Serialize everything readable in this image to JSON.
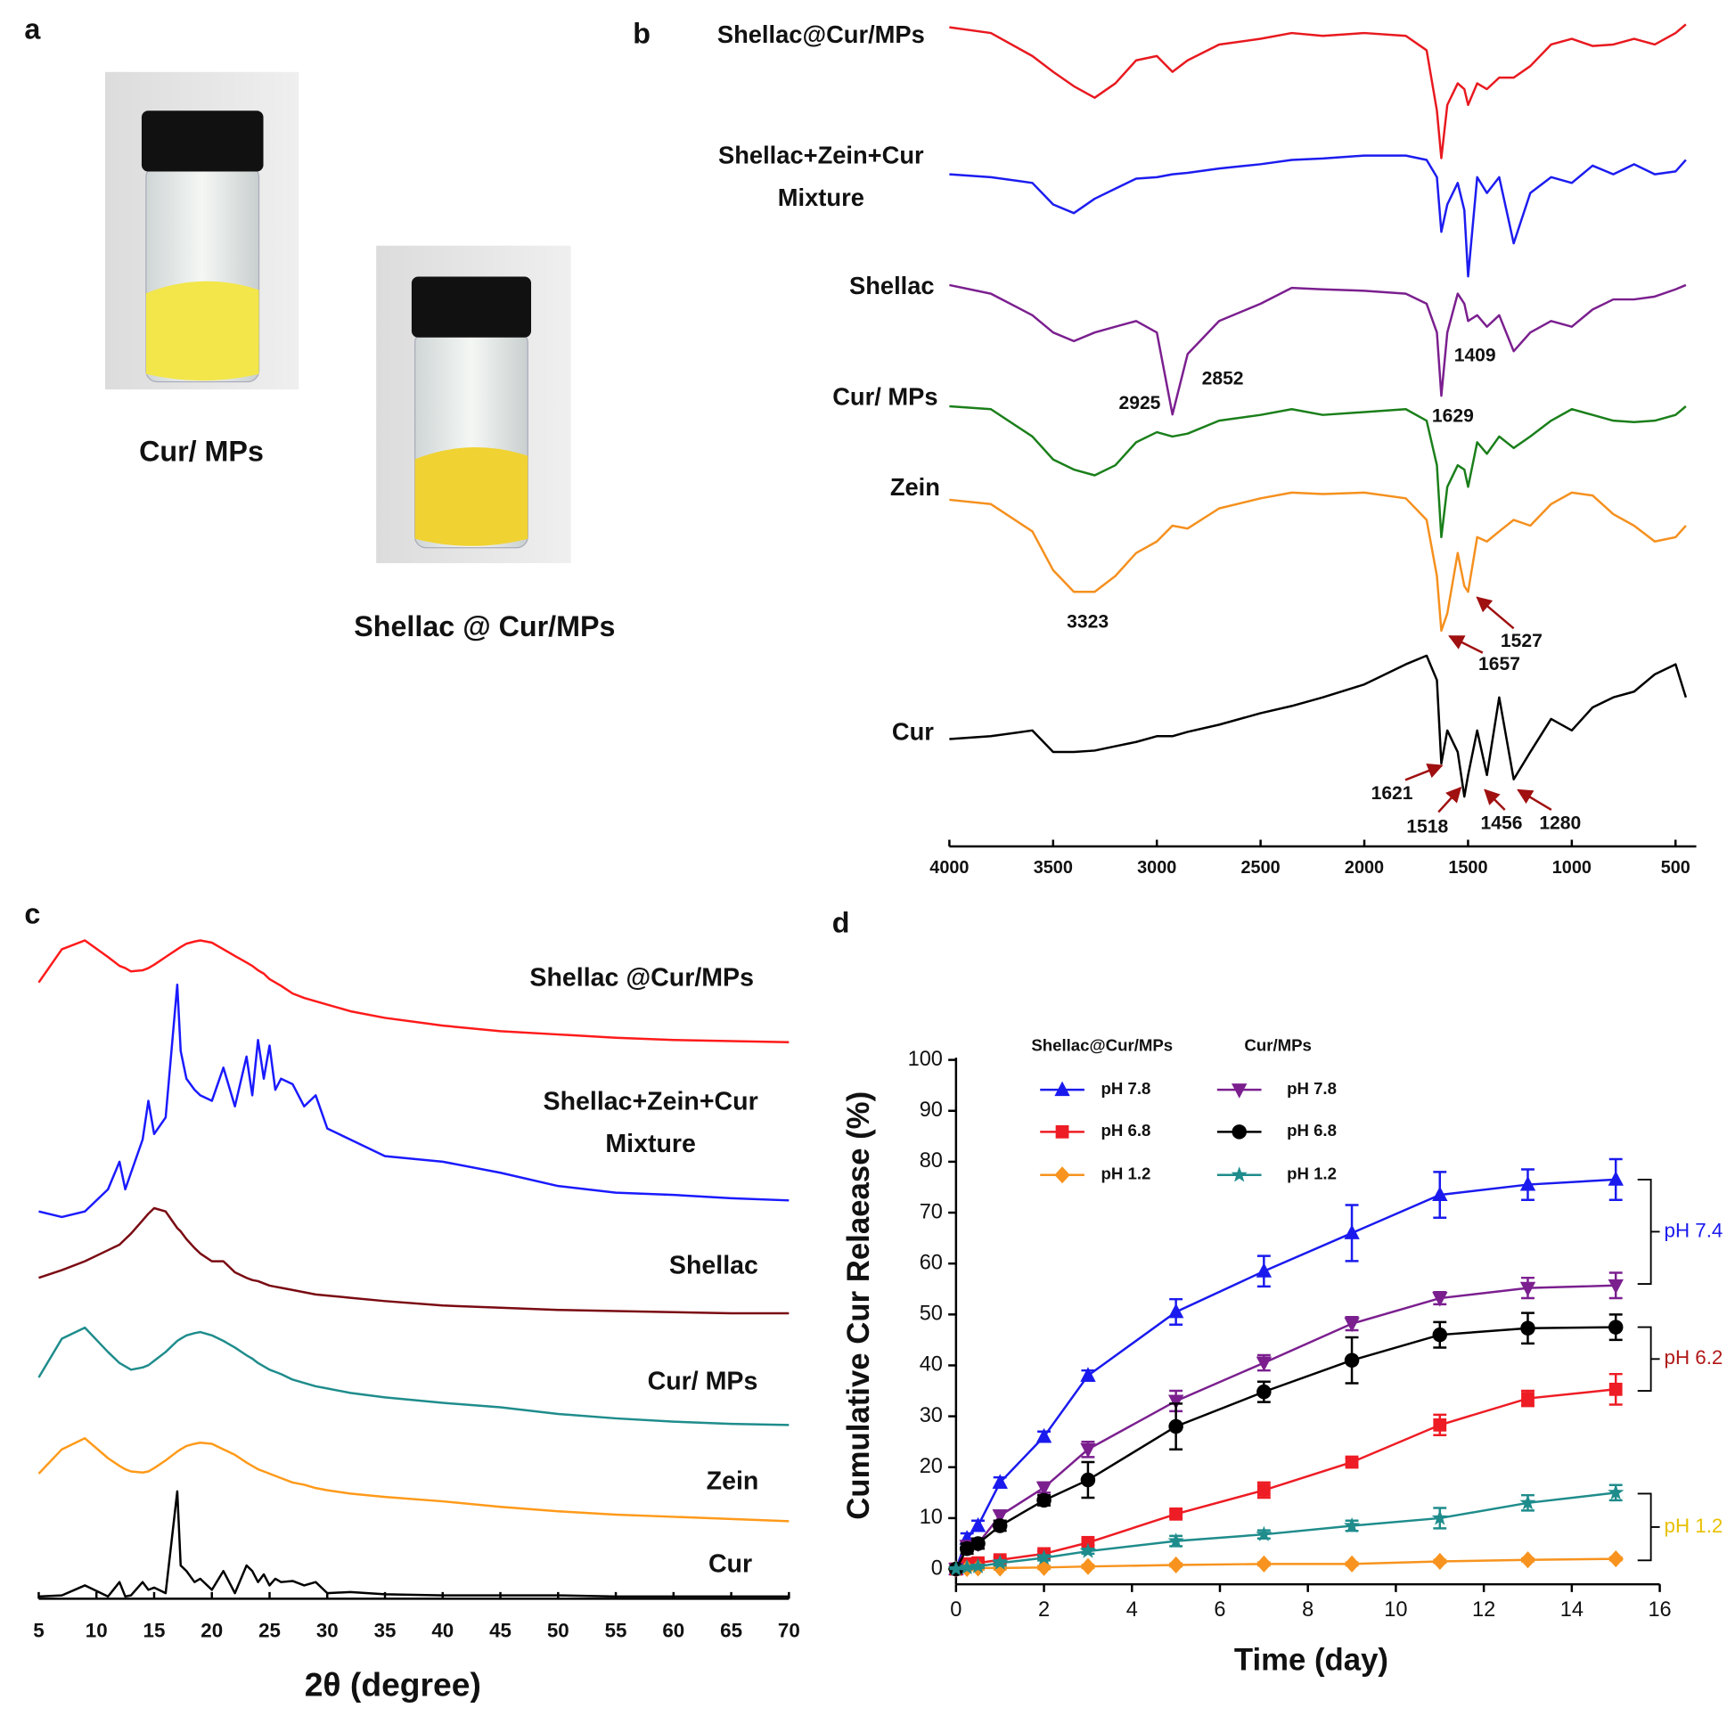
{
  "panel_labels": [
    "a",
    "b",
    "c",
    "d"
  ],
  "photos": {
    "captions": [
      "Cur/ MPs",
      "Shellac @ Cur/MPs"
    ]
  },
  "chart_data": [
    {
      "type": "spectra",
      "x": [
        4000,
        3800,
        3600,
        3500,
        3400,
        3300,
        3200,
        3100,
        3000,
        2925,
        2852,
        2700,
        2500,
        2350,
        2200,
        2000,
        1800,
        1700,
        1650,
        1629,
        1600,
        1550,
        1518,
        1500,
        1456,
        1409,
        1350,
        1280,
        1200,
        1100,
        1000,
        900,
        800,
        700,
        600,
        500,
        450
      ],
      "xlim": [
        4000,
        400
      ],
      "xticks": [
        4000,
        3500,
        3000,
        2500,
        2000,
        1500,
        1000,
        500
      ],
      "series": [
        {
          "label": [
            "Shellac@Cur/MPs"
          ],
          "color": "#e8191f",
          "values": [
            98,
            94,
            78,
            67,
            57,
            49,
            59,
            75,
            78,
            67,
            75,
            86,
            90,
            94,
            92,
            94,
            92,
            82,
            40,
            7,
            44,
            59,
            55,
            44,
            59,
            55,
            63,
            63,
            71,
            86,
            90,
            85,
            86,
            90,
            86,
            94,
            100
          ],
          "annotations": []
        },
        {
          "label": [
            "Shellac+Zein+Cur",
            "Mixture"
          ],
          "color": "#1c1cf0",
          "values": [
            85,
            83,
            79,
            64,
            58,
            68,
            75,
            82,
            83,
            85,
            86,
            89,
            92,
            95,
            96,
            98,
            98,
            95,
            83,
            45,
            64,
            79,
            60,
            14,
            83,
            72,
            83,
            37,
            72,
            83,
            79,
            91,
            85,
            92,
            85,
            87,
            95
          ],
          "annotations": []
        },
        {
          "label": [
            "Shellac"
          ],
          "color": "#7b1f8f",
          "values": [
            98,
            92,
            77,
            65,
            59,
            65,
            69,
            73,
            65,
            8,
            50,
            73,
            85,
            96,
            95,
            94,
            92,
            85,
            65,
            21,
            65,
            92,
            85,
            73,
            77,
            69,
            77,
            52,
            65,
            73,
            69,
            81,
            88,
            88,
            90,
            95,
            98
          ],
          "annotations": [
            "2925",
            "2852",
            "1409",
            "1629"
          ]
        },
        {
          "label": [
            "Cur/ MPs"
          ],
          "color": "#1a7f1a",
          "values": [
            96,
            94,
            75,
            59,
            52,
            48,
            55,
            71,
            78,
            75,
            77,
            86,
            90,
            94,
            90,
            92,
            94,
            86,
            55,
            5,
            40,
            55,
            52,
            40,
            71,
            63,
            75,
            67,
            75,
            86,
            94,
            90,
            86,
            85,
            86,
            90,
            96
          ],
          "annotations": []
        },
        {
          "label": [
            "Zein"
          ],
          "color": "#f5901e",
          "values": [
            91,
            88,
            69,
            42,
            27,
            27,
            38,
            54,
            62,
            73,
            71,
            85,
            92,
            96,
            95,
            96,
            92,
            77,
            38,
            0,
            12,
            54,
            31,
            27,
            65,
            62,
            69,
            77,
            73,
            88,
            96,
            94,
            81,
            73,
            62,
            65,
            73
          ],
          "annotations": [
            "3323",
            "1527",
            "1657"
          ]
        },
        {
          "label": [
            "Cur"
          ],
          "color": "#000000",
          "values": [
            40,
            42,
            46,
            31,
            31,
            32,
            35,
            38,
            42,
            42,
            45,
            50,
            58,
            63,
            69,
            78,
            92,
            98,
            81,
            23,
            46,
            31,
            0,
            15,
            46,
            15,
            69,
            12,
            31,
            54,
            46,
            62,
            69,
            73,
            85,
            92,
            69
          ],
          "annotations": [
            "1621",
            "1518",
            "1456",
            "1280"
          ]
        }
      ]
    },
    {
      "type": "spectra",
      "xlabel": "2θ (degree)",
      "x": [
        5,
        7,
        9,
        11,
        12,
        12.5,
        13,
        14,
        14.5,
        15,
        16,
        17,
        17.3,
        17.8,
        18.5,
        19,
        20,
        21,
        22,
        23,
        23.5,
        24,
        24.5,
        25,
        25.5,
        26,
        27,
        28,
        29,
        30,
        32,
        35,
        40,
        45,
        50,
        55,
        60,
        65,
        70
      ],
      "xlim": [
        5,
        70
      ],
      "xticks": [
        5,
        10,
        15,
        20,
        25,
        30,
        35,
        40,
        45,
        50,
        55,
        60,
        65,
        70
      ],
      "series": [
        {
          "label": [
            "Shellac @Cur/MPs"
          ],
          "color": "#ff1a1a",
          "values": [
            57,
            87,
            95,
            80,
            72,
            70,
            67,
            68,
            70,
            73,
            80,
            87,
            89,
            92,
            94,
            95,
            93,
            87,
            81,
            75,
            72,
            68,
            65,
            60,
            57,
            54,
            47,
            43,
            40,
            37,
            31,
            25,
            18,
            13,
            10,
            7,
            5,
            4,
            3
          ]
        },
        {
          "label": [
            "Shellac+Zein+Cur",
            "Mixture"
          ],
          "color": "#1a1aff",
          "values": [
            5,
            0,
            5,
            25,
            50,
            25,
            40,
            70,
            105,
            75,
            90,
            210,
            150,
            125,
            115,
            110,
            105,
            135,
            100,
            145,
            110,
            160,
            125,
            155,
            115,
            125,
            120,
            100,
            110,
            80,
            70,
            55,
            50,
            40,
            28,
            22,
            20,
            17,
            15
          ]
        },
        {
          "label": [
            "Shellac"
          ],
          "color": "#7a0a12",
          "values": [
            35,
            42,
            50,
            60,
            65,
            70,
            75,
            87,
            93,
            98,
            95,
            80,
            77,
            70,
            62,
            57,
            50,
            50,
            40,
            35,
            33,
            32,
            30,
            28,
            27,
            26,
            24,
            22,
            20,
            19,
            17,
            14,
            10,
            8,
            6,
            5,
            4,
            3,
            3
          ]
        },
        {
          "label": [
            "Cur/ MPs"
          ],
          "color": "#1f8c8c",
          "values": [
            50,
            85,
            95,
            73,
            63,
            60,
            57,
            59,
            61,
            65,
            73,
            83,
            85,
            88,
            90,
            91,
            88,
            83,
            77,
            70,
            67,
            63,
            60,
            57,
            55,
            53,
            48,
            45,
            42,
            40,
            36,
            32,
            27,
            23,
            17,
            13,
            10,
            8,
            7
          ]
        },
        {
          "label": [
            "Zein"
          ],
          "color": "#ff9a1a",
          "values": [
            48,
            70,
            80,
            62,
            55,
            52,
            50,
            49,
            50,
            53,
            60,
            68,
            70,
            73,
            75,
            76,
            75,
            70,
            65,
            58,
            55,
            52,
            50,
            48,
            46,
            44,
            40,
            38,
            35,
            33,
            30,
            27,
            23,
            18,
            14,
            11,
            9,
            7,
            5
          ]
        },
        {
          "label": [
            "Cur"
          ],
          "color": "#000000",
          "values": [
            2,
            3,
            12,
            2,
            15,
            2,
            3,
            15,
            8,
            10,
            5,
            97,
            30,
            25,
            15,
            18,
            8,
            25,
            5,
            30,
            25,
            15,
            22,
            12,
            18,
            15,
            16,
            12,
            15,
            5,
            6,
            4,
            3,
            3,
            3,
            2,
            2,
            2,
            2
          ]
        }
      ]
    },
    {
      "type": "line",
      "xlabel": "Time (day)",
      "ylabel": "Cumulative Cur Relaease (%)",
      "x": [
        0,
        0.25,
        0.5,
        1,
        2,
        3,
        5,
        7,
        9,
        11,
        13,
        15
      ],
      "xlim": [
        0,
        16
      ],
      "ylim": [
        -3,
        100
      ],
      "xticks": [
        0,
        2,
        4,
        6,
        8,
        10,
        12,
        14,
        16
      ],
      "yticks": [
        0,
        10,
        20,
        30,
        40,
        50,
        60,
        70,
        80,
        90,
        100
      ],
      "legend_groups": [
        "Shellac@Cur/MPs",
        "Cur/MPs"
      ],
      "series": [
        {
          "name": "pH 7.8",
          "group": 0,
          "color": "#1a1aee",
          "marker": "triangle-up",
          "values": [
            0,
            6,
            8.5,
            17,
            26,
            38,
            50.5,
            58.5,
            66,
            73.5,
            75.5,
            76.5
          ],
          "errors": [
            0,
            1,
            1,
            1,
            1,
            1,
            2.5,
            3,
            5.5,
            4.5,
            3,
            4
          ]
        },
        {
          "name": "pH 6.8",
          "group": 0,
          "color": "#ee1c24",
          "marker": "square",
          "values": [
            0,
            1,
            1.2,
            1.8,
            3,
            5.2,
            10.8,
            15.5,
            21,
            28.3,
            33.5,
            35.3
          ],
          "errors": [
            0,
            0.5,
            0.5,
            0.5,
            0.5,
            0.5,
            0.7,
            1.5,
            0.8,
            2,
            1.5,
            3
          ]
        },
        {
          "name": "pH 1.2",
          "group": 0,
          "color": "#f7931e",
          "marker": "diamond",
          "values": [
            0,
            0.1,
            0.2,
            0.2,
            0.3,
            0.5,
            0.8,
            1,
            1,
            1.5,
            1.8,
            2
          ],
          "errors": [
            0,
            0.3,
            0.3,
            0.3,
            0.3,
            0.3,
            0.3,
            0.3,
            0.3,
            0.3,
            0.3,
            0.3
          ]
        },
        {
          "name": "pH 7.8",
          "group": 1,
          "color": "#7b1f8f",
          "marker": "triangle-down",
          "values": [
            0,
            4.5,
            5,
            10.5,
            16,
            23.5,
            33,
            40.5,
            48.2,
            53.2,
            55.2,
            55.7
          ],
          "errors": [
            0,
            1,
            1,
            1,
            1,
            1.5,
            2,
            1.5,
            1.3,
            1.2,
            2,
            2.5
          ]
        },
        {
          "name": "pH 6.8",
          "group": 1,
          "color": "#000000",
          "marker": "circle",
          "values": [
            0,
            4,
            5,
            8.5,
            13.5,
            17.5,
            28,
            34.8,
            41,
            46,
            47.3,
            47.5
          ],
          "errors": [
            0,
            1,
            1,
            1,
            1,
            3.5,
            4.5,
            2,
            4.5,
            2.5,
            3,
            2.5
          ]
        },
        {
          "name": "pH 1.2",
          "group": 1,
          "color": "#1f8c8c",
          "marker": "star",
          "values": [
            0,
            0.3,
            0.5,
            1.2,
            2.2,
            3.5,
            5.5,
            6.8,
            8.5,
            10,
            13,
            15
          ],
          "errors": [
            0,
            0.3,
            0.3,
            0.5,
            0.5,
            0.5,
            1,
            0.8,
            1,
            2,
            1.5,
            1.5
          ]
        }
      ],
      "brackets": [
        {
          "label": "pH 7.4",
          "color": "#1a1aee",
          "span": [
            56,
            76.5
          ]
        },
        {
          "label": "pH 6.2",
          "color": "#b01818",
          "span": [
            35,
            47.5
          ]
        },
        {
          "label": "pH 1.2",
          "color": "#e8c000",
          "span": [
            1.7,
            14.8
          ]
        }
      ]
    }
  ]
}
